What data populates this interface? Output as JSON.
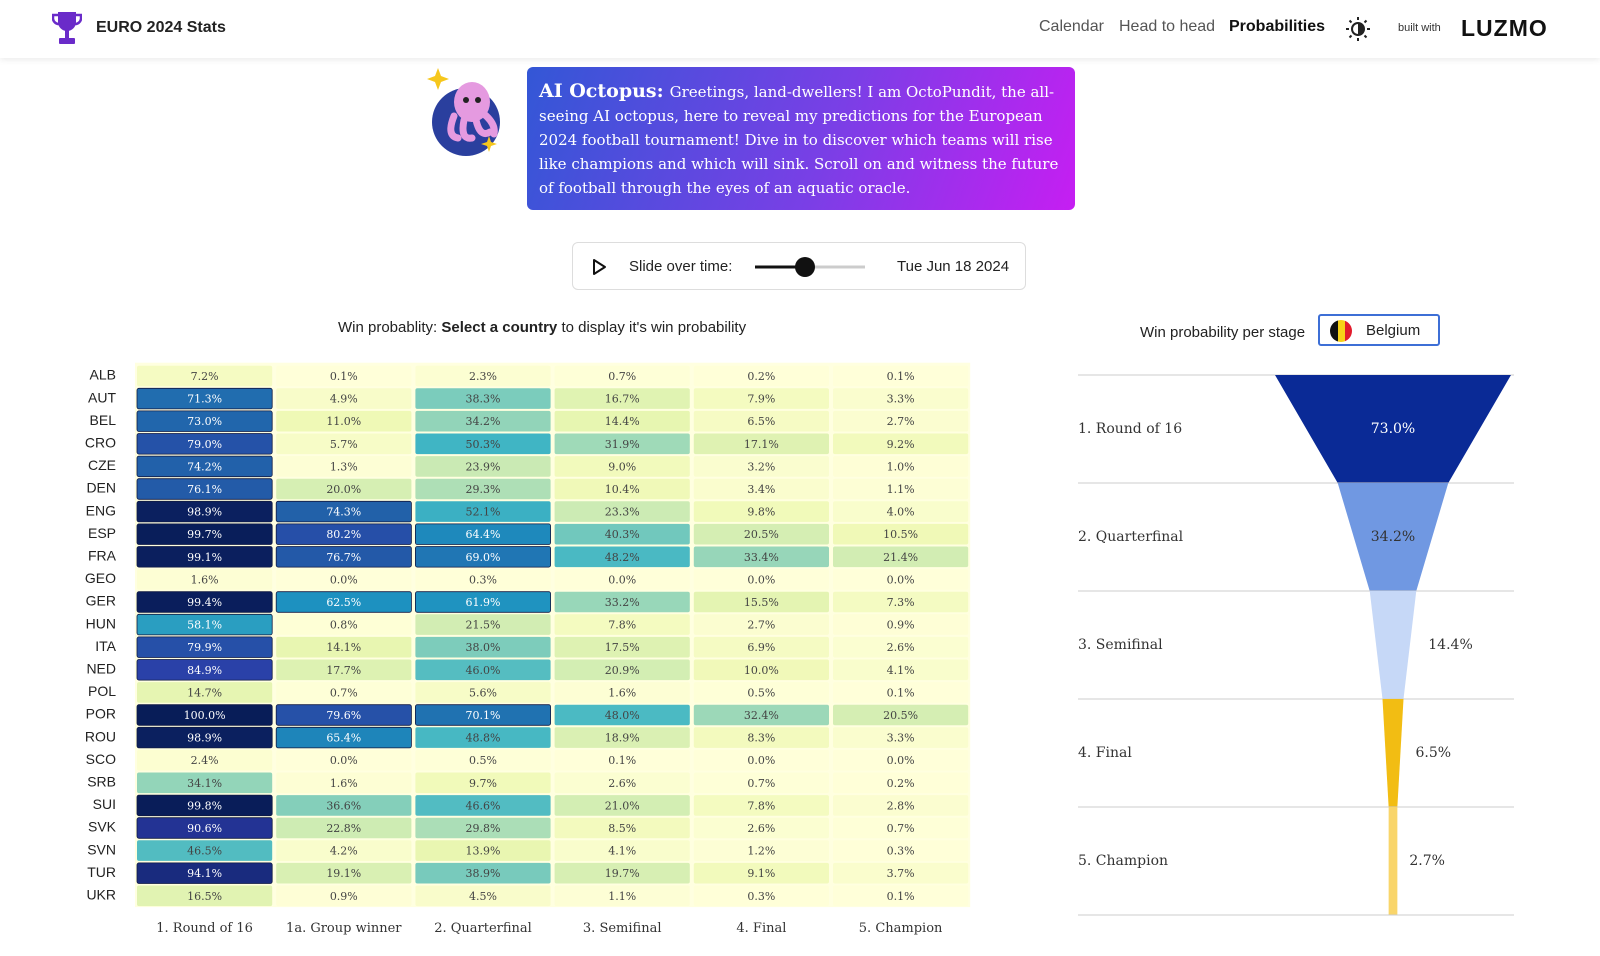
{
  "header": {
    "title": "EURO 2024 Stats",
    "nav": [
      "Calendar",
      "Head to head",
      "Probabilities"
    ],
    "built_with": "built with",
    "brand": "LUZMO"
  },
  "oracle": {
    "name": "AI Octopus:",
    "message": "Greetings, land-dwellers! I am OctoPundit, the all-seeing AI octopus, here to reveal my predictions for the European 2024 football tournament! Dive in to discover which teams will rise like champions and which will sink. Scroll on and witness the future of football through the eyes of an aquatic oracle."
  },
  "slider": {
    "label": "Slide over time:",
    "date": "Tue Jun 18 2024"
  },
  "chart_data": [
    {
      "type": "heatmap",
      "title": {
        "prefix": "Win probablity:",
        "bold": "Select a country",
        "suffix": "to display it's win probability"
      },
      "categories": [
        "1. Round of 16",
        "1a. Group winner",
        "2. Quarterfinal",
        "3. Semifinal",
        "4. Final",
        "5. Champion"
      ],
      "rows": [
        "ALB",
        "AUT",
        "BEL",
        "CRO",
        "CZE",
        "DEN",
        "ENG",
        "ESP",
        "FRA",
        "GEO",
        "GER",
        "HUN",
        "ITA",
        "NED",
        "POL",
        "POR",
        "ROU",
        "SCO",
        "SRB",
        "SUI",
        "SVK",
        "SVN",
        "TUR",
        "UKR"
      ],
      "colorscale": [
        "#ffffd9",
        "#edf8b1",
        "#c7e9b4",
        "#7fcdbb",
        "#41b6c4",
        "#1d91c0",
        "#225ea8",
        "#2c3aa8",
        "#081d58"
      ],
      "values": [
        [
          7.2,
          0.1,
          2.3,
          0.7,
          0.2,
          0.1
        ],
        [
          71.3,
          4.9,
          38.3,
          16.7,
          7.9,
          3.3
        ],
        [
          73,
          11,
          34.2,
          14.4,
          6.5,
          2.7
        ],
        [
          79,
          5.7,
          50.3,
          31.9,
          17.1,
          9.2
        ],
        [
          74.2,
          1.3,
          23.9,
          9,
          3.2,
          1
        ],
        [
          76.1,
          20,
          29.3,
          10.4,
          3.4,
          1.1
        ],
        [
          98.9,
          74.3,
          52.1,
          23.3,
          9.8,
          4
        ],
        [
          99.7,
          80.2,
          64.4,
          40.3,
          20.5,
          10.5
        ],
        [
          99.1,
          76.7,
          69,
          48.2,
          33.4,
          21.4
        ],
        [
          1.6,
          0,
          0.3,
          0,
          0,
          0
        ],
        [
          99.4,
          62.5,
          61.9,
          33.2,
          15.5,
          7.3
        ],
        [
          58.1,
          0.8,
          21.5,
          7.8,
          2.7,
          0.9
        ],
        [
          79.9,
          14.1,
          38,
          17.5,
          6.9,
          2.6
        ],
        [
          84.9,
          17.7,
          46,
          20.9,
          10,
          4.1
        ],
        [
          14.7,
          0.7,
          5.6,
          1.6,
          0.5,
          0.1
        ],
        [
          100,
          79.6,
          70.1,
          48,
          32.4,
          20.5
        ],
        [
          98.9,
          65.4,
          48.8,
          18.9,
          8.3,
          3.3
        ],
        [
          2.4,
          0,
          0.5,
          0.1,
          0,
          0
        ],
        [
          34.1,
          1.6,
          9.7,
          2.6,
          0.7,
          0.2
        ],
        [
          99.8,
          36.6,
          46.6,
          21,
          7.8,
          2.8
        ],
        [
          90.6,
          22.8,
          29.8,
          8.5,
          2.6,
          0.7
        ],
        [
          46.5,
          4.2,
          13.9,
          4.1,
          1.2,
          0.3
        ],
        [
          94.1,
          19.1,
          38.9,
          19.7,
          9.1,
          3.7
        ],
        [
          16.5,
          0.9,
          4.5,
          1.1,
          0.3,
          0.1
        ]
      ],
      "value_labels": [
        [
          "7.2%",
          "0.1%",
          "2.3%",
          "0.7%",
          "0.2%",
          "0.1%"
        ],
        [
          "71.3%",
          "4.9%",
          "38.3%",
          "16.7%",
          "7.9%",
          "3.3%"
        ],
        [
          "73.0%",
          "11.0%",
          "34.2%",
          "14.4%",
          "6.5%",
          "2.7%"
        ],
        [
          "79.0%",
          "5.7%",
          "50.3%",
          "31.9%",
          "17.1%",
          "9.2%"
        ],
        [
          "74.2%",
          "1.3%",
          "23.9%",
          "9.0%",
          "3.2%",
          "1.0%"
        ],
        [
          "76.1%",
          "20.0%",
          "29.3%",
          "10.4%",
          "3.4%",
          "1.1%"
        ],
        [
          "98.9%",
          "74.3%",
          "52.1%",
          "23.3%",
          "9.8%",
          "4.0%"
        ],
        [
          "99.7%",
          "80.2%",
          "64.4%",
          "40.3%",
          "20.5%",
          "10.5%"
        ],
        [
          "99.1%",
          "76.7%",
          "69.0%",
          "48.2%",
          "33.4%",
          "21.4%"
        ],
        [
          "1.6%",
          "0.0%",
          "0.3%",
          "0.0%",
          "0.0%",
          "0.0%"
        ],
        [
          "99.4%",
          "62.5%",
          "61.9%",
          "33.2%",
          "15.5%",
          "7.3%"
        ],
        [
          "58.1%",
          "0.8%",
          "21.5%",
          "7.8%",
          "2.7%",
          "0.9%"
        ],
        [
          "79.9%",
          "14.1%",
          "38.0%",
          "17.5%",
          "6.9%",
          "2.6%"
        ],
        [
          "84.9%",
          "17.7%",
          "46.0%",
          "20.9%",
          "10.0%",
          "4.1%"
        ],
        [
          "14.7%",
          "0.7%",
          "5.6%",
          "1.6%",
          "0.5%",
          "0.1%"
        ],
        [
          "100.0%",
          "79.6%",
          "70.1%",
          "48.0%",
          "32.4%",
          "20.5%"
        ],
        [
          "98.9%",
          "65.4%",
          "48.8%",
          "18.9%",
          "8.3%",
          "3.3%"
        ],
        [
          "2.4%",
          "0.0%",
          "0.5%",
          "0.1%",
          "0.0%",
          "0.0%"
        ],
        [
          "34.1%",
          "1.6%",
          "9.7%",
          "2.6%",
          "0.7%",
          "0.2%"
        ],
        [
          "99.8%",
          "36.6%",
          "46.6%",
          "21.0%",
          "7.8%",
          "2.8%"
        ],
        [
          "90.6%",
          "22.8%",
          "29.8%",
          "8.5%",
          "2.6%",
          "0.7%"
        ],
        [
          "46.5%",
          "4.2%",
          "13.9%",
          "4.1%",
          "1.2%",
          "0.3%"
        ],
        [
          "94.1%",
          "19.1%",
          "38.9%",
          "19.7%",
          "9.1%",
          "3.7%"
        ],
        [
          "16.5%",
          "0.9%",
          "4.5%",
          "1.1%",
          "0.3%",
          "0.1%"
        ]
      ]
    },
    {
      "type": "funnel",
      "title": "Win probability per stage",
      "selected": "Belgium",
      "categories": [
        "1. Round of 16",
        "2. Quarterfinal",
        "3. Semifinal",
        "4. Final",
        "5. Champion"
      ],
      "values": [
        73,
        34.2,
        14.4,
        6.5,
        2.7
      ],
      "value_labels": [
        "73.0%",
        "34.2%",
        "14.4%",
        "6.5%",
        "2.7%"
      ],
      "colors": [
        "#0a2a96",
        "#7098e2",
        "#c6d8f7",
        "#f2bd13",
        "#f9d56a"
      ]
    }
  ]
}
